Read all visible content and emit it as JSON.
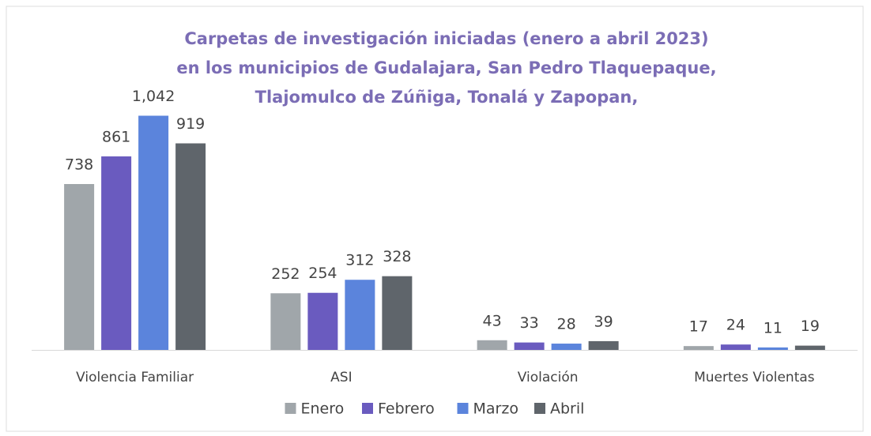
{
  "chart_data": {
    "type": "bar",
    "title": [
      "Carpetas de investigación iniciadas (enero a abril 2023)",
      "en los municipios de Gudalajara, San Pedro Tlaquepaque,",
      "Tlajomulco de Zúñiga, Tonalá y Zapopan,"
    ],
    "categories": [
      "Violencia Familiar",
      "ASI",
      "Violación",
      "Muertes Violentas"
    ],
    "series": [
      {
        "name": "Enero",
        "color": "#a0a6aa",
        "values": [
          738,
          252,
          43,
          17
        ]
      },
      {
        "name": "Febrero",
        "color": "#6a5bbf",
        "values": [
          861,
          254,
          33,
          24
        ]
      },
      {
        "name": "Marzo",
        "color": "#5b84dc",
        "values": [
          1042,
          312,
          28,
          11
        ],
        "value_labels": [
          "1,042",
          "312",
          "28",
          "11"
        ]
      },
      {
        "name": "Abril",
        "color": "#5f656b",
        "values": [
          919,
          328,
          39,
          19
        ]
      }
    ],
    "ylim": [
      0,
      1100
    ],
    "legend": "bottom"
  }
}
